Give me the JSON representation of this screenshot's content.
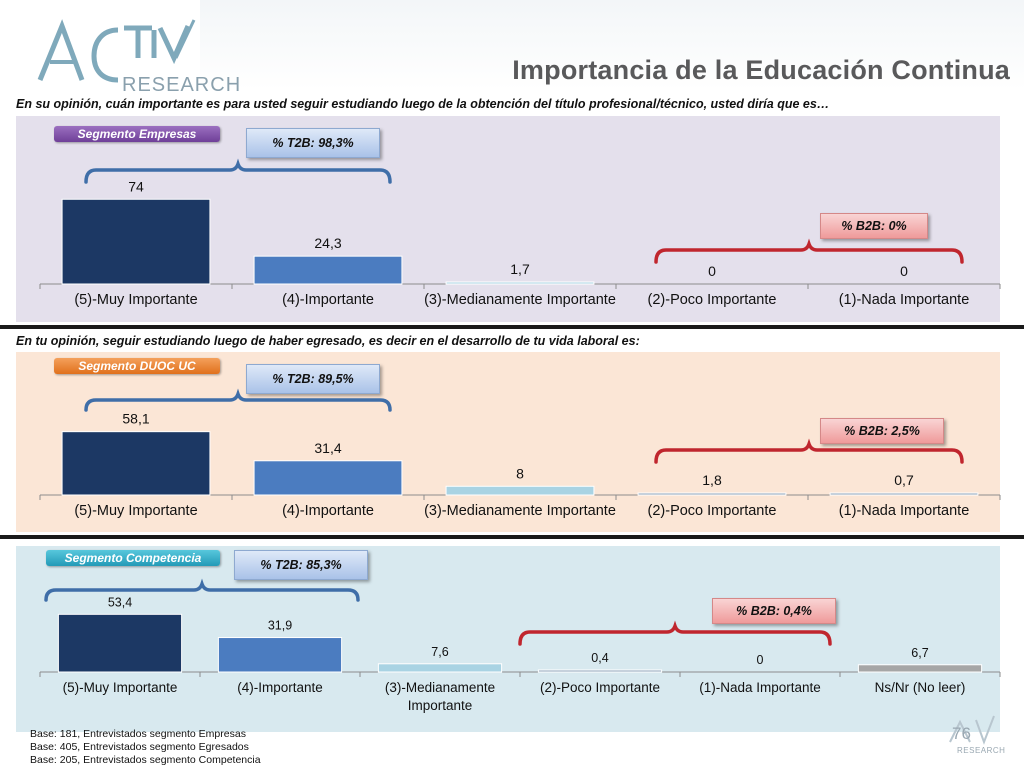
{
  "header": {
    "logo_word": "ACTIVA",
    "logo_sub": "RESEARCH",
    "title": "Importancia de la Educación Continua"
  },
  "questions": {
    "q1": "En su opinión, cuán importante es para usted seguir estudiando luego de la obtención del título profesional/técnico, usted diría que es…",
    "q2": "En tu opinión, seguir estudiando luego de haber egresado, es decir en el desarrollo de tu vida laboral es:"
  },
  "segments": {
    "s1": {
      "tag": "Segmento Empresas",
      "t2b": "% T2B: 98,3%",
      "b2b": "% B2B: 0%"
    },
    "s2": {
      "tag": "Segmento DUOC UC",
      "t2b": "% T2B: 89,5%",
      "b2b": "% B2B: 2,5%"
    },
    "s3": {
      "tag": "Segmento Competencia",
      "t2b": "% T2B: 85,3%",
      "b2b": "% B2B: 0,4%"
    }
  },
  "colors": {
    "bar_5": "#1c3864",
    "bar_4": "#4b7cc0",
    "bar_3": "#a9d3e3",
    "bar_2": "#8ea3b8",
    "bar_1": "#8ea3b8",
    "bar_ns": "#a6a6a6",
    "bracket_blue": "#3f6ea8",
    "bracket_red": "#c0262e"
  },
  "chart_data": [
    {
      "type": "bar",
      "categories": [
        "(5)-Muy Importante",
        "(4)-Importante",
        "(3)-Medianamente Importante",
        "(2)-Poco Importante",
        "(1)-Nada Importante"
      ],
      "values": [
        74,
        24.3,
        1.7,
        0,
        0
      ],
      "value_labels": [
        "74",
        "24,3",
        "1,7",
        "0",
        "0"
      ]
    },
    {
      "type": "bar",
      "categories": [
        "(5)-Muy Importante",
        "(4)-Importante",
        "(3)-Medianamente Importante",
        "(2)-Poco Importante",
        "(1)-Nada Importante"
      ],
      "values": [
        58.1,
        31.4,
        8,
        1.8,
        0.7
      ],
      "value_labels": [
        "58,1",
        "31,4",
        "8",
        "1,8",
        "0,7"
      ]
    },
    {
      "type": "bar",
      "categories": [
        "(5)-Muy Importante",
        "(4)-Importante",
        "(3)-Medianamente Importante",
        "(2)-Poco Importante",
        "(1)-Nada Importante",
        "Ns/Nr (No leer)"
      ],
      "values": [
        53.4,
        31.9,
        7.6,
        0.4,
        0,
        6.7
      ],
      "value_labels": [
        "53,4",
        "31,9",
        "7,6",
        "0,4",
        "0",
        "6,7"
      ]
    }
  ],
  "footer": {
    "base1": "Base: 181, Entrevistados segmento Empresas",
    "base2": "Base: 405, Entrevistados segmento Egresados",
    "base3": "Base: 205, Entrevistados segmento Competencia",
    "page": "76",
    "logo_sub": "RESEARCH"
  }
}
